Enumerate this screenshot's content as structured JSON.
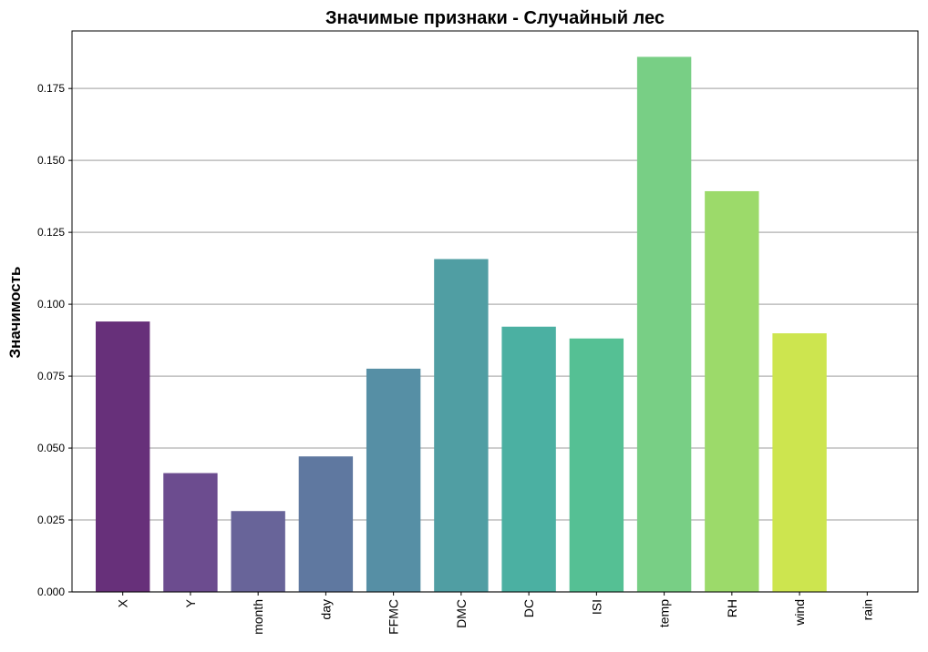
{
  "chart_data": {
    "type": "bar",
    "title": "Значимые признаки - Случайный лес",
    "xlabel": "",
    "ylabel": "Значимость",
    "categories": [
      "X",
      "Y",
      "month",
      "day",
      "FFMC",
      "DMC",
      "DC",
      "ISI",
      "temp",
      "RH",
      "wind",
      "rain"
    ],
    "values": [
      0.094,
      0.0413,
      0.0281,
      0.0471,
      0.0776,
      0.1157,
      0.0922,
      0.0881,
      0.186,
      0.1393,
      0.0899,
      0.0
    ],
    "colors": [
      "#67307a",
      "#6c4c8f",
      "#686499",
      "#5f78a0",
      "#568fa5",
      "#509ea3",
      "#4bb0a2",
      "#55c094",
      "#78cf85",
      "#9cda6a",
      "#cde54f",
      "#f2e93a"
    ],
    "yticks": [
      "0.000",
      "0.025",
      "0.050",
      "0.075",
      "0.100",
      "0.125",
      "0.150",
      "0.175"
    ],
    "ylim": [
      0,
      0.195
    ],
    "grid": "horizontal"
  }
}
